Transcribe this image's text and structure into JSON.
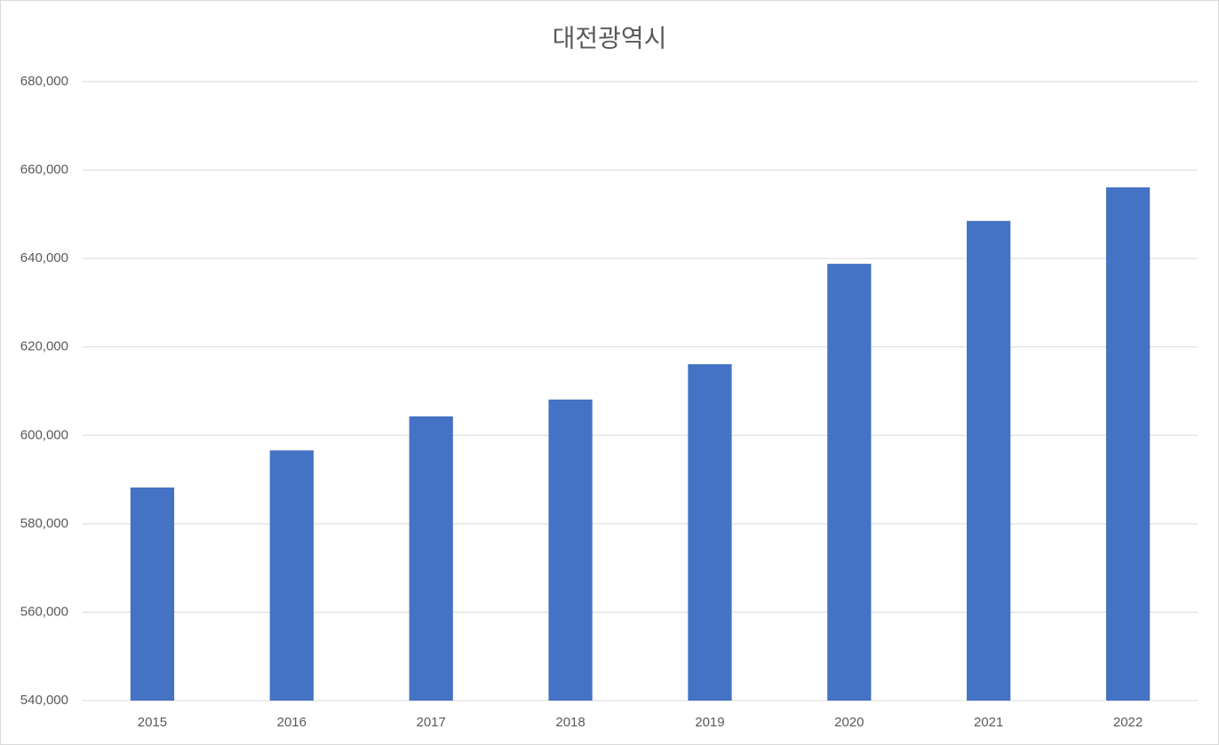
{
  "chart_data": {
    "type": "bar",
    "title": "대전광역시",
    "categories": [
      "2015",
      "2016",
      "2017",
      "2018",
      "2019",
      "2020",
      "2021",
      "2022"
    ],
    "values": [
      588200,
      596600,
      604300,
      608100,
      616100,
      638800,
      648500,
      656100
    ],
    "color": "#4472c4",
    "ylim": [
      540000,
      680000
    ],
    "yticks": [
      {
        "value": 540000,
        "label": "540,000"
      },
      {
        "value": 560000,
        "label": "560,000"
      },
      {
        "value": 580000,
        "label": "580,000"
      },
      {
        "value": 600000,
        "label": "600,000"
      },
      {
        "value": 620000,
        "label": "620,000"
      },
      {
        "value": 640000,
        "label": "640,000"
      },
      {
        "value": 660000,
        "label": "660,000"
      },
      {
        "value": 680000,
        "label": "680,000"
      }
    ],
    "grid": true
  }
}
